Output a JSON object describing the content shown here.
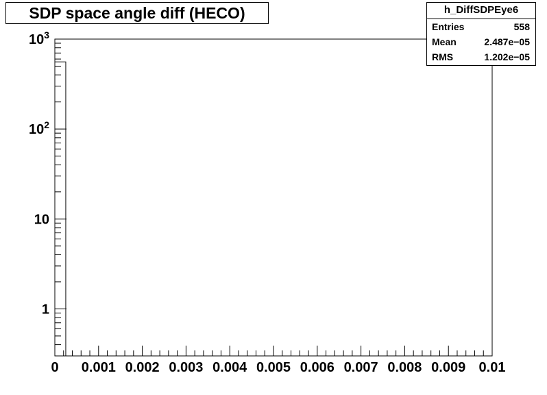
{
  "chart_data": {
    "type": "bar",
    "title": "SDP space angle diff (HECO)",
    "xlabel": "",
    "ylabel": "",
    "xlim": [
      0,
      0.01
    ],
    "ylim": [
      0.3,
      1000
    ],
    "ylog": true,
    "bin_width": 0.00025,
    "bins": [
      {
        "x_low": 0,
        "x_high": 0.00025,
        "count": 558
      }
    ],
    "x_tick_labels": [
      "0",
      "0.001",
      "0.002",
      "0.003",
      "0.004",
      "0.005",
      "0.006",
      "0.007",
      "0.008",
      "0.009",
      "0.01"
    ],
    "y_tick_labels": [
      {
        "value": 1,
        "label": "1"
      },
      {
        "value": 10,
        "label": "10"
      },
      {
        "value": 100,
        "base": "10",
        "exp": "2"
      },
      {
        "value": 1000,
        "base": "10",
        "exp": "3"
      }
    ],
    "grid": false,
    "colors": {
      "line": "#000000",
      "background": "#ffffff"
    }
  },
  "stats": {
    "name": "h_DiffSDPEye6",
    "entries_label": "Entries",
    "entries_value": "558",
    "mean_label": "Mean",
    "mean_value": "2.487e−05",
    "rms_label": "RMS",
    "rms_value": "1.202e−05"
  }
}
